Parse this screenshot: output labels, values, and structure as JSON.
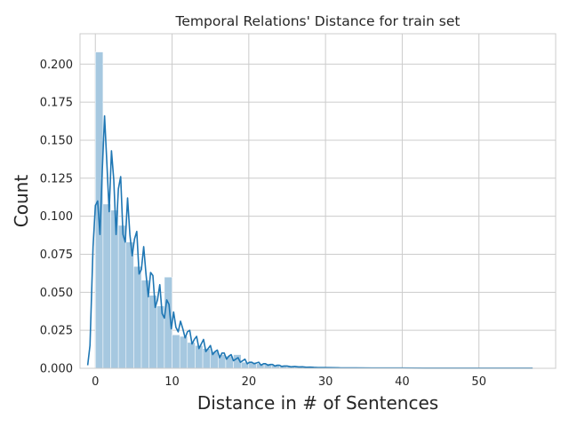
{
  "chart_data": {
    "type": "bar",
    "title": "Temporal Relations' Distance for train set",
    "xlabel": "Distance in # of Sentences",
    "ylabel": "Count",
    "xlim": [
      -2,
      60
    ],
    "ylim": [
      0,
      0.22
    ],
    "x_ticks": [
      0,
      10,
      20,
      30,
      40,
      50
    ],
    "y_ticks": [
      0.0,
      0.025,
      0.05,
      0.075,
      0.1,
      0.125,
      0.15,
      0.175,
      0.2
    ],
    "y_tick_labels": [
      "0.000",
      "0.025",
      "0.050",
      "0.075",
      "0.100",
      "0.125",
      "0.150",
      "0.175",
      "0.200"
    ],
    "grid": true,
    "colors": {
      "histogram": "#a6c8e0",
      "kde": "#1f77b4",
      "grid": "#cccccc"
    },
    "series": [
      {
        "type": "histogram",
        "bin_width": 1,
        "bins": [
          {
            "x0": 0,
            "x1": 1,
            "value": 0.208
          },
          {
            "x0": 1,
            "x1": 2,
            "value": 0.108
          },
          {
            "x0": 2,
            "x1": 3,
            "value": 0.104
          },
          {
            "x0": 3,
            "x1": 4,
            "value": 0.094
          },
          {
            "x0": 4,
            "x1": 5,
            "value": 0.083
          },
          {
            "x0": 5,
            "x1": 6,
            "value": 0.067
          },
          {
            "x0": 6,
            "x1": 7,
            "value": 0.058
          },
          {
            "x0": 7,
            "x1": 8,
            "value": 0.048
          },
          {
            "x0": 8,
            "x1": 9,
            "value": 0.041
          },
          {
            "x0": 9,
            "x1": 10,
            "value": 0.06
          },
          {
            "x0": 10,
            "x1": 11,
            "value": 0.022
          },
          {
            "x0": 11,
            "x1": 12,
            "value": 0.021
          },
          {
            "x0": 12,
            "x1": 13,
            "value": 0.017
          },
          {
            "x0": 13,
            "x1": 14,
            "value": 0.015
          },
          {
            "x0": 14,
            "x1": 15,
            "value": 0.013
          },
          {
            "x0": 15,
            "x1": 16,
            "value": 0.011
          },
          {
            "x0": 16,
            "x1": 17,
            "value": 0.009
          },
          {
            "x0": 17,
            "x1": 18,
            "value": 0.008
          },
          {
            "x0": 18,
            "x1": 19,
            "value": 0.009
          },
          {
            "x0": 19,
            "x1": 20,
            "value": 0.004
          },
          {
            "x0": 20,
            "x1": 21,
            "value": 0.004
          },
          {
            "x0": 21,
            "x1": 22,
            "value": 0.003
          },
          {
            "x0": 22,
            "x1": 23,
            "value": 0.003
          },
          {
            "x0": 23,
            "x1": 24,
            "value": 0.002
          },
          {
            "x0": 24,
            "x1": 25,
            "value": 0.002
          },
          {
            "x0": 25,
            "x1": 26,
            "value": 0.0015
          },
          {
            "x0": 26,
            "x1": 27,
            "value": 0.0012
          },
          {
            "x0": 27,
            "x1": 28,
            "value": 0.001
          },
          {
            "x0": 28,
            "x1": 29,
            "value": 0.0008
          },
          {
            "x0": 29,
            "x1": 30,
            "value": 0.0006
          },
          {
            "x0": 30,
            "x1": 31,
            "value": 0.0005
          },
          {
            "x0": 31,
            "x1": 32,
            "value": 0.0004
          },
          {
            "x0": 32,
            "x1": 33,
            "value": 0.0003
          },
          {
            "x0": 33,
            "x1": 34,
            "value": 0.0003
          },
          {
            "x0": 34,
            "x1": 35,
            "value": 0.0002
          },
          {
            "x0": 35,
            "x1": 36,
            "value": 0.0002
          }
        ]
      },
      {
        "type": "kde_line",
        "x": [
          -1,
          -0.7,
          -0.3,
          0,
          0.3,
          0.6,
          0.9,
          1.2,
          1.5,
          1.8,
          2.1,
          2.4,
          2.7,
          3.0,
          3.3,
          3.6,
          3.9,
          4.2,
          4.5,
          4.8,
          5.1,
          5.4,
          5.7,
          6.0,
          6.3,
          6.6,
          6.9,
          7.2,
          7.5,
          7.8,
          8.1,
          8.4,
          8.7,
          9.0,
          9.3,
          9.6,
          9.9,
          10.2,
          10.5,
          10.8,
          11.1,
          11.4,
          11.7,
          12.0,
          12.3,
          12.6,
          12.9,
          13.2,
          13.5,
          13.8,
          14.1,
          14.4,
          14.7,
          15.0,
          15.3,
          15.6,
          15.9,
          16.2,
          16.5,
          16.8,
          17.1,
          17.4,
          17.7,
          18.0,
          18.3,
          18.6,
          18.9,
          19.2,
          19.5,
          19.8,
          20.1,
          20.4,
          20.7,
          21.0,
          21.3,
          21.6,
          21.9,
          22.2,
          22.5,
          22.8,
          23.1,
          23.4,
          23.7,
          24.0,
          24.3,
          24.6,
          25.0,
          25.5,
          26.0,
          26.5,
          27.0,
          27.5,
          28.0,
          28.5,
          29.0,
          30.0,
          31.0,
          32.0,
          33.0,
          34.0,
          36.0,
          38.0,
          40.0,
          43.0,
          46.0,
          50.0,
          54.0,
          57.0
        ],
        "y": [
          0.002,
          0.015,
          0.08,
          0.107,
          0.11,
          0.088,
          0.13,
          0.166,
          0.135,
          0.103,
          0.143,
          0.124,
          0.088,
          0.118,
          0.126,
          0.088,
          0.083,
          0.112,
          0.088,
          0.074,
          0.085,
          0.09,
          0.062,
          0.065,
          0.08,
          0.062,
          0.047,
          0.063,
          0.061,
          0.04,
          0.045,
          0.055,
          0.036,
          0.033,
          0.045,
          0.042,
          0.026,
          0.037,
          0.027,
          0.024,
          0.031,
          0.026,
          0.02,
          0.024,
          0.025,
          0.016,
          0.019,
          0.021,
          0.013,
          0.016,
          0.019,
          0.011,
          0.013,
          0.015,
          0.009,
          0.011,
          0.012,
          0.007,
          0.01,
          0.01,
          0.006,
          0.008,
          0.009,
          0.005,
          0.006,
          0.007,
          0.004,
          0.005,
          0.006,
          0.003,
          0.004,
          0.004,
          0.003,
          0.0035,
          0.004,
          0.002,
          0.003,
          0.003,
          0.002,
          0.0025,
          0.0025,
          0.0015,
          0.002,
          0.002,
          0.0012,
          0.0015,
          0.0015,
          0.001,
          0.0012,
          0.0009,
          0.001,
          0.0007,
          0.0008,
          0.0006,
          0.0005,
          0.0005,
          0.0004,
          0.0003,
          0.0003,
          0.0003,
          0.0002,
          0.0002,
          0.0002,
          0.0001,
          0.0001,
          0.0001,
          0.0001,
          0.0001
        ]
      }
    ]
  }
}
